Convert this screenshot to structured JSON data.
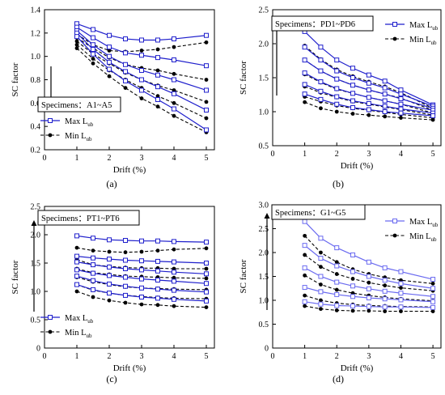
{
  "figure": {
    "panel_labels": [
      "(a)",
      "(b)",
      "(c)",
      "(d)"
    ]
  },
  "chart_data": [
    {
      "type": "line",
      "panel": "(a)",
      "xlabel": "Drift (%)",
      "ylabel": "SC factor",
      "xlim": [
        0,
        5.25
      ],
      "ylim": [
        0.2,
        1.4
      ],
      "xticks": [
        0,
        1,
        2,
        3,
        4,
        5
      ],
      "yticks": [
        0.2,
        0.4,
        0.6,
        0.8,
        1.0,
        1.2,
        1.4
      ],
      "x": [
        1,
        1.5,
        2,
        2.5,
        3,
        3.5,
        4,
        5
      ],
      "legend": {
        "max_label": "Max L",
        "min_label": "Min L",
        "subscript": "ub"
      },
      "specimens_label": "Specimens：A1~A5",
      "max_color": "#1f1fcc",
      "min_color": "#000000",
      "max_series": [
        [
          1.28,
          1.23,
          1.18,
          1.15,
          1.14,
          1.14,
          1.15,
          1.18
        ],
        [
          1.25,
          1.16,
          1.08,
          1.03,
          1.01,
          0.99,
          0.97,
          0.92
        ],
        [
          1.22,
          1.1,
          1.0,
          0.93,
          0.88,
          0.84,
          0.8,
          0.71
        ],
        [
          1.2,
          1.06,
          0.95,
          0.87,
          0.8,
          0.74,
          0.68,
          0.54
        ],
        [
          1.17,
          1.02,
          0.89,
          0.79,
          0.71,
          0.63,
          0.55,
          0.37
        ]
      ],
      "min_series": [
        [
          1.19,
          1.1,
          1.05,
          1.04,
          1.05,
          1.06,
          1.08,
          1.12
        ],
        [
          1.16,
          1.07,
          0.99,
          0.93,
          0.9,
          0.88,
          0.85,
          0.8
        ],
        [
          1.13,
          1.02,
          0.94,
          0.86,
          0.8,
          0.75,
          0.71,
          0.61
        ],
        [
          1.1,
          0.98,
          0.88,
          0.8,
          0.73,
          0.66,
          0.6,
          0.47
        ],
        [
          1.07,
          0.94,
          0.83,
          0.73,
          0.64,
          0.57,
          0.49,
          0.35
        ]
      ]
    },
    {
      "type": "line",
      "panel": "(b)",
      "xlabel": "Drift (%)",
      "ylabel": "SC factor",
      "xlim": [
        0,
        5.25
      ],
      "ylim": [
        0.5,
        2.5
      ],
      "xticks": [
        0,
        1,
        2,
        3,
        4,
        5
      ],
      "yticks": [
        0.5,
        1.0,
        1.5,
        2.0,
        2.5
      ],
      "x": [
        1,
        1.5,
        2,
        2.5,
        3,
        3.5,
        4,
        5
      ],
      "legend": {
        "max_label": "Max L",
        "min_label": "Min L",
        "subscript": "ub"
      },
      "specimens_label": "Specimens：PD1~PD6",
      "max_color": "#1f1fcc",
      "min_color": "#000000",
      "max_series": [
        [
          2.18,
          1.95,
          1.76,
          1.64,
          1.54,
          1.45,
          1.32,
          1.1
        ],
        [
          1.95,
          1.76,
          1.6,
          1.5,
          1.42,
          1.35,
          1.26,
          1.08
        ],
        [
          1.76,
          1.6,
          1.48,
          1.39,
          1.32,
          1.26,
          1.19,
          1.05
        ],
        [
          1.57,
          1.44,
          1.34,
          1.27,
          1.21,
          1.16,
          1.11,
          1.02
        ],
        [
          1.4,
          1.3,
          1.22,
          1.16,
          1.12,
          1.08,
          1.04,
          0.98
        ],
        [
          1.26,
          1.18,
          1.11,
          1.06,
          1.03,
          1.0,
          0.98,
          0.94
        ]
      ],
      "min_series": [
        [
          1.97,
          1.77,
          1.62,
          1.52,
          1.44,
          1.37,
          1.28,
          1.05
        ],
        [
          1.76,
          1.6,
          1.48,
          1.39,
          1.32,
          1.26,
          1.2,
          1.02
        ],
        [
          1.55,
          1.43,
          1.33,
          1.27,
          1.21,
          1.16,
          1.11,
          0.98
        ],
        [
          1.37,
          1.28,
          1.21,
          1.15,
          1.11,
          1.07,
          1.03,
          0.95
        ],
        [
          1.22,
          1.15,
          1.09,
          1.05,
          1.02,
          0.99,
          0.96,
          0.91
        ],
        [
          1.14,
          1.05,
          1.0,
          0.97,
          0.95,
          0.93,
          0.91,
          0.88
        ]
      ]
    },
    {
      "type": "line",
      "panel": "(c)",
      "xlabel": "Drift (%)",
      "ylabel": "SC factor",
      "xlim": [
        0,
        5.25
      ],
      "ylim": [
        0,
        2.5
      ],
      "xticks": [
        0,
        1,
        2,
        3,
        4,
        5
      ],
      "yticks": [
        0,
        0.5,
        1.0,
        1.5,
        2.0,
        2.5
      ],
      "x": [
        1,
        1.5,
        2,
        2.5,
        3,
        3.5,
        4,
        5
      ],
      "legend": {
        "max_label": "Max L",
        "min_label": "Min L",
        "subscript": "ub"
      },
      "specimens_label": "Specimens：PT1~PT6",
      "max_color": "#1f1fcc",
      "min_color": "#000000",
      "max_series": [
        [
          1.98,
          1.94,
          1.91,
          1.9,
          1.89,
          1.89,
          1.88,
          1.87
        ],
        [
          1.62,
          1.59,
          1.57,
          1.55,
          1.54,
          1.53,
          1.52,
          1.5
        ],
        [
          1.52,
          1.47,
          1.43,
          1.4,
          1.38,
          1.36,
          1.34,
          1.31
        ],
        [
          1.38,
          1.32,
          1.28,
          1.25,
          1.22,
          1.2,
          1.18,
          1.14
        ],
        [
          1.27,
          1.19,
          1.13,
          1.09,
          1.06,
          1.04,
          1.02,
          0.99
        ],
        [
          1.12,
          1.03,
          0.97,
          0.93,
          0.9,
          0.88,
          0.86,
          0.83
        ]
      ],
      "min_series": [
        [
          1.77,
          1.72,
          1.7,
          1.69,
          1.7,
          1.72,
          1.74,
          1.76
        ],
        [
          1.56,
          1.47,
          1.44,
          1.42,
          1.41,
          1.41,
          1.4,
          1.4
        ],
        [
          1.4,
          1.33,
          1.3,
          1.27,
          1.26,
          1.25,
          1.24,
          1.23
        ],
        [
          1.25,
          1.17,
          1.12,
          1.08,
          1.06,
          1.05,
          1.04,
          1.03
        ],
        [
          1.12,
          1.02,
          0.97,
          0.93,
          0.91,
          0.89,
          0.88,
          0.87
        ],
        [
          1.0,
          0.9,
          0.84,
          0.8,
          0.77,
          0.76,
          0.74,
          0.72
        ]
      ]
    },
    {
      "type": "line",
      "panel": "(d)",
      "xlabel": "Drift (%)",
      "ylabel": "SC factor",
      "xlim": [
        0,
        5.25
      ],
      "ylim": [
        0,
        3.0
      ],
      "xticks": [
        0,
        1,
        2,
        3,
        4,
        5
      ],
      "yticks": [
        0,
        0.5,
        1.0,
        1.5,
        2.0,
        2.5,
        3.0
      ],
      "x": [
        1,
        1.5,
        2,
        2.5,
        3,
        3.5,
        4,
        5
      ],
      "legend": {
        "max_label": "Max L",
        "min_label": "Min L",
        "subscript": "ub"
      },
      "specimens_label": "Specimens：G1~G5",
      "max_color": "#6a6af0",
      "min_color": "#000000",
      "max_series": [
        [
          2.65,
          2.3,
          2.1,
          1.95,
          1.8,
          1.68,
          1.6,
          1.44
        ],
        [
          2.15,
          1.88,
          1.72,
          1.6,
          1.5,
          1.42,
          1.35,
          1.25
        ],
        [
          1.68,
          1.5,
          1.38,
          1.3,
          1.24,
          1.19,
          1.15,
          1.08
        ],
        [
          1.27,
          1.18,
          1.12,
          1.08,
          1.05,
          1.03,
          1.01,
          0.97
        ],
        [
          0.97,
          0.92,
          0.89,
          0.88,
          0.87,
          0.86,
          0.86,
          0.85
        ]
      ],
      "min_series": [
        [
          2.35,
          2.0,
          1.8,
          1.65,
          1.55,
          1.48,
          1.42,
          1.35
        ],
        [
          1.95,
          1.7,
          1.55,
          1.45,
          1.37,
          1.31,
          1.26,
          1.2
        ],
        [
          1.52,
          1.33,
          1.22,
          1.15,
          1.1,
          1.06,
          1.03,
          0.99
        ],
        [
          1.1,
          1.0,
          0.94,
          0.91,
          0.89,
          0.88,
          0.87,
          0.86
        ],
        [
          0.88,
          0.82,
          0.79,
          0.78,
          0.78,
          0.77,
          0.77,
          0.77
        ]
      ]
    }
  ]
}
